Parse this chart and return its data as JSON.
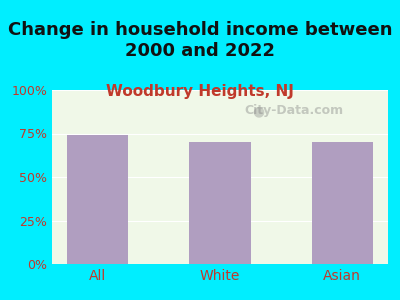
{
  "title": "Change in household income between\n2000 and 2022",
  "subtitle": "Woodbury Heights, NJ",
  "categories": [
    "All",
    "White",
    "Asian"
  ],
  "values": [
    74,
    70,
    70
  ],
  "bar_color": "#b09ec0",
  "title_fontsize": 13,
  "subtitle_fontsize": 11,
  "subtitle_color": "#c0392b",
  "title_color": "#111111",
  "tick_label_color": "#c0392b",
  "ylim": [
    0,
    100
  ],
  "yticks": [
    0,
    25,
    50,
    75,
    100
  ],
  "ytick_labels": [
    "0%",
    "25%",
    "50%",
    "75%",
    "100%"
  ],
  "background_outer": "#00eeff",
  "background_inner_top": "#f0f8e8",
  "background_inner_bottom": "#e8f8f0",
  "watermark": "City-Data.com"
}
